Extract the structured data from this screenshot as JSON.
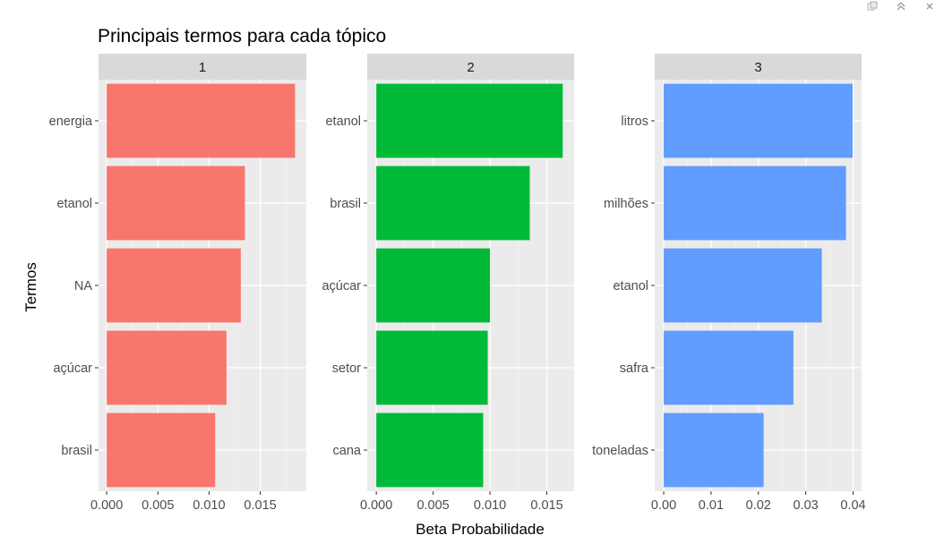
{
  "window": {
    "controls": [
      {
        "name": "popout-icon"
      },
      {
        "name": "collapse-icon"
      },
      {
        "name": "close-icon"
      }
    ]
  },
  "chart_data": {
    "type": "bar",
    "orientation": "horizontal",
    "title": "Principais termos para cada tópico",
    "xlabel": "Beta Probabilidade",
    "ylabel": "Termos",
    "grid": true,
    "legend": "none",
    "facets": [
      {
        "label": "1",
        "color": "#F8766D",
        "xlim": [
          -0.0008,
          0.0195
        ],
        "ticks": [
          0,
          0.005,
          0.01,
          0.015
        ],
        "tick_labels": [
          "0.000",
          "0.005",
          "0.010",
          "0.015"
        ],
        "categories": [
          "energia",
          "etanol",
          "NA",
          "açúcar",
          "brasil"
        ],
        "values": [
          0.0184,
          0.0135,
          0.0131,
          0.0117,
          0.0106
        ]
      },
      {
        "label": "2",
        "color": "#00BA38",
        "xlim": [
          -0.0008,
          0.0174
        ],
        "ticks": [
          0,
          0.005,
          0.01,
          0.015
        ],
        "tick_labels": [
          "0.000",
          "0.005",
          "0.010",
          "0.015"
        ],
        "categories": [
          "etanol",
          "brasil",
          "açúcar",
          "setor",
          "cana"
        ],
        "values": [
          0.0164,
          0.0135,
          0.01,
          0.0098,
          0.0094
        ]
      },
      {
        "label": "3",
        "color": "#619CFF",
        "xlim": [
          -0.0019,
          0.0418
        ],
        "ticks": [
          0,
          0.01,
          0.02,
          0.03,
          0.04
        ],
        "tick_labels": [
          "0.00",
          "0.01",
          "0.02",
          "0.03",
          "0.04"
        ],
        "categories": [
          "litros",
          "milhões",
          "etanol",
          "safra",
          "toneladas"
        ],
        "values": [
          0.0399,
          0.0385,
          0.0334,
          0.0274,
          0.0211
        ]
      }
    ]
  }
}
